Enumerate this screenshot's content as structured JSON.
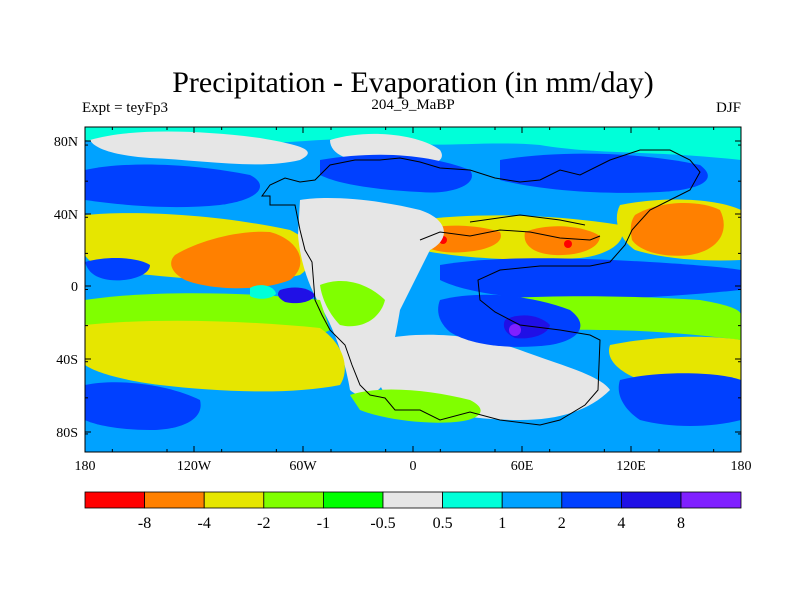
{
  "title": "Precipitation - Evaporation (in mm/day)",
  "left_label": "Expt = teyFp3",
  "center_label": "204_9_MaBP",
  "right_label": "DJF",
  "lat_ticks": [
    "80N",
    "40N",
    "0",
    "40S",
    "80S"
  ],
  "lon_ticks": [
    "180",
    "120W",
    "60W",
    "0",
    "60E",
    "120E",
    "180"
  ],
  "colorbar": {
    "colors": [
      "#ff0000",
      "#ff8000",
      "#e6e600",
      "#80ff00",
      "#00ff00",
      "#e6e6e6",
      "#00ffd9",
      "#00a2ff",
      "#0040ff",
      "#2010e6",
      "#8020ff"
    ],
    "labels": [
      "-8",
      "-4",
      "-2",
      "-1",
      "-0.5",
      "0.5",
      "1",
      "2",
      "4",
      "8"
    ]
  }
}
